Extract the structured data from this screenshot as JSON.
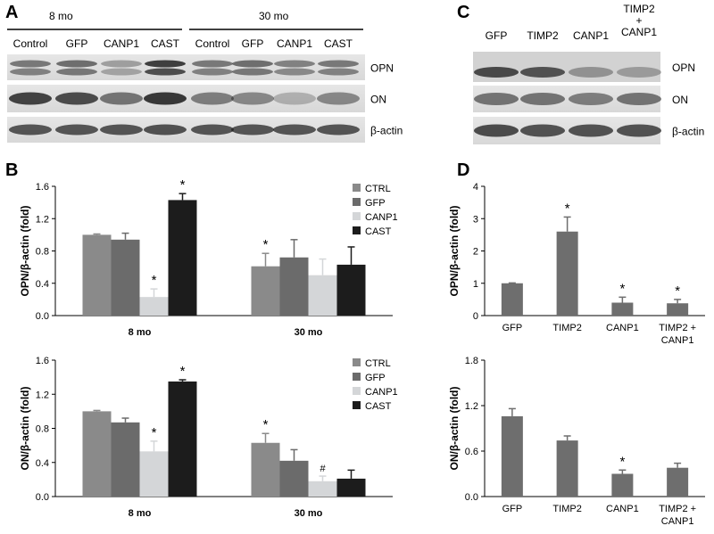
{
  "panels": {
    "A": "A",
    "B": "B",
    "C": "C",
    "D": "D"
  },
  "colors": {
    "ctrl": "#8a8a8a",
    "gfp": "#6b6b6b",
    "canp1": "#d4d6d8",
    "cast": "#1c1c1c",
    "single": "#6e6e6e"
  },
  "blotA": {
    "groups": [
      "8 mo",
      "30 mo"
    ],
    "lanes": [
      "Control",
      "GFP",
      "CANP1",
      "CAST",
      "Control",
      "GFP",
      "CANP1",
      "CAST"
    ],
    "rows": [
      "OPN",
      "ON",
      "β-actin"
    ]
  },
  "blotC": {
    "lanes": [
      "GFP",
      "TIMP2",
      "CANP1",
      "TIMP2\n+\nCANP1"
    ],
    "rows": [
      "OPN",
      "ON",
      "β-actin"
    ]
  },
  "chart_data": [
    {
      "id": "B-top",
      "type": "bar",
      "ylabel": "OPN/β-actin (fold)",
      "ylim": [
        0,
        1.6
      ],
      "yticks": [
        "0.0",
        "0.4",
        "0.8",
        "1.2",
        "1.6"
      ],
      "categories": [
        "8 mo",
        "30 mo"
      ],
      "series": [
        {
          "name": "CTRL",
          "values": [
            1.0,
            0.61
          ],
          "errors": [
            0.01,
            0.16
          ],
          "marks": [
            "",
            "*"
          ]
        },
        {
          "name": "GFP",
          "values": [
            0.94,
            0.72
          ],
          "errors": [
            0.08,
            0.22
          ],
          "marks": [
            "",
            ""
          ]
        },
        {
          "name": "CANP1",
          "values": [
            0.23,
            0.5
          ],
          "errors": [
            0.1,
            0.2
          ],
          "marks": [
            "*",
            ""
          ]
        },
        {
          "name": "CAST",
          "values": [
            1.43,
            0.63
          ],
          "errors": [
            0.08,
            0.22
          ],
          "marks": [
            "*",
            ""
          ]
        }
      ],
      "legend": "top-right"
    },
    {
      "id": "B-bottom",
      "type": "bar",
      "ylabel": "ON/β-actin (fold)",
      "ylim": [
        0,
        1.6
      ],
      "yticks": [
        "0.0",
        "0.4",
        "0.8",
        "1.2",
        "1.6"
      ],
      "categories": [
        "8 mo",
        "30 mo"
      ],
      "series": [
        {
          "name": "CTRL",
          "values": [
            1.0,
            0.63
          ],
          "errors": [
            0.01,
            0.11
          ],
          "marks": [
            "",
            "*"
          ]
        },
        {
          "name": "GFP",
          "values": [
            0.87,
            0.42
          ],
          "errors": [
            0.05,
            0.13
          ],
          "marks": [
            "",
            ""
          ]
        },
        {
          "name": "CANP1",
          "values": [
            0.53,
            0.18
          ],
          "errors": [
            0.12,
            0.06
          ],
          "marks": [
            "*",
            "#"
          ]
        },
        {
          "name": "CAST",
          "values": [
            1.35,
            0.21
          ],
          "errors": [
            0.02,
            0.1
          ],
          "marks": [
            "*",
            ""
          ]
        }
      ],
      "legend": "top-right"
    },
    {
      "id": "D-top",
      "type": "bar",
      "ylabel": "OPN/β-actin (fold)",
      "ylim": [
        0,
        4
      ],
      "yticks": [
        "0",
        "1",
        "2",
        "3",
        "4"
      ],
      "categories": [
        "GFP",
        "TIMP2",
        "CANP1",
        "TIMP2 +\nCANP1"
      ],
      "values": [
        1.0,
        2.6,
        0.4,
        0.38
      ],
      "errors": [
        0.01,
        0.45,
        0.17,
        0.12
      ],
      "marks": [
        "",
        "*",
        "*",
        "*"
      ]
    },
    {
      "id": "D-bottom",
      "type": "bar",
      "ylabel": "ON/β-actin (fold)",
      "ylim": [
        0,
        1.8
      ],
      "yticks": [
        "0.0",
        "0.6",
        "1.2",
        "1.8"
      ],
      "categories": [
        "GFP",
        "TIMP2",
        "CANP1",
        "TIMP2 +\nCANP1"
      ],
      "values": [
        1.06,
        0.74,
        0.3,
        0.38
      ],
      "errors": [
        0.1,
        0.06,
        0.05,
        0.06
      ],
      "marks": [
        "",
        "",
        "*",
        ""
      ]
    }
  ]
}
